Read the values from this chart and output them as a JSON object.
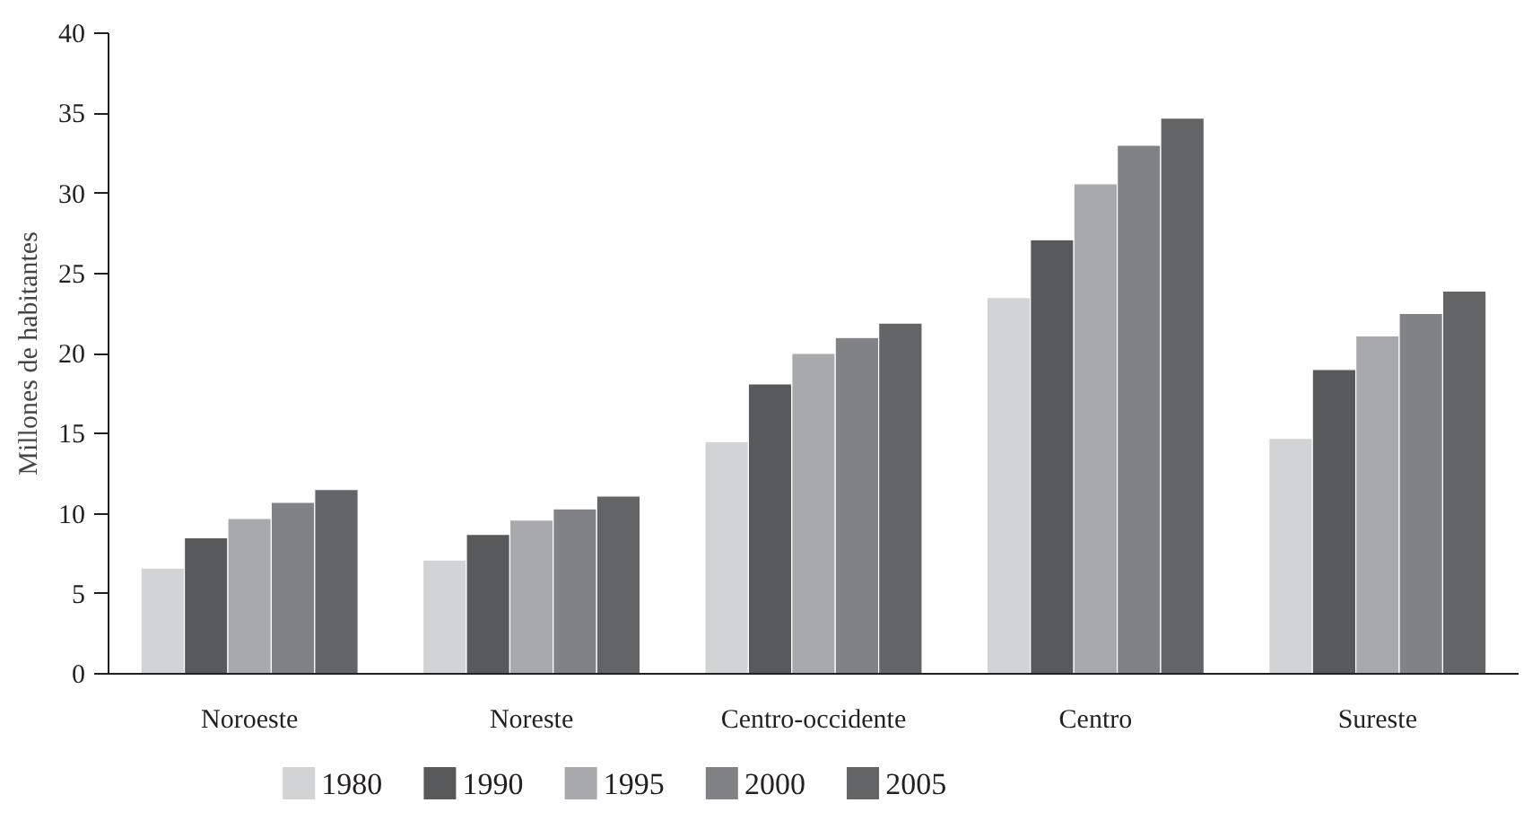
{
  "chart_data": {
    "type": "bar",
    "ylabel": "Millones de habitantes",
    "categories": [
      "Noroeste",
      "Noreste",
      "Centro-occidente",
      "Centro",
      "Sureste"
    ],
    "series": [
      {
        "name": "1980",
        "color": "#d2d3d5",
        "values": [
          6.6,
          7.1,
          14.5,
          23.5,
          14.7
        ]
      },
      {
        "name": "1990",
        "color": "#58595b",
        "values": [
          8.5,
          8.7,
          18.1,
          27.1,
          19.0
        ]
      },
      {
        "name": "1995",
        "color": "#a7a9ac",
        "values": [
          9.7,
          9.6,
          20.0,
          30.6,
          21.1
        ]
      },
      {
        "name": "2000",
        "color": "#808285",
        "values": [
          10.7,
          10.3,
          21.0,
          33.0,
          22.5
        ]
      },
      {
        "name": "2005",
        "color": "#636466",
        "values": [
          11.5,
          11.1,
          21.9,
          34.7,
          23.9
        ]
      }
    ],
    "ylim": [
      0,
      40
    ],
    "yticks": [
      0,
      5,
      10,
      15,
      20,
      25,
      30,
      35,
      40
    ],
    "grid": false,
    "legend": "bottom"
  }
}
